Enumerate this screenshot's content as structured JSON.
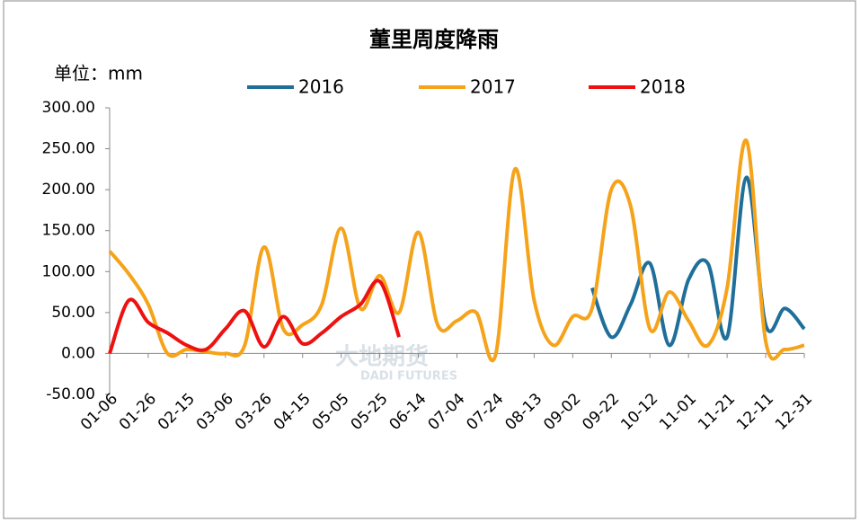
{
  "chart_data": {
    "type": "line",
    "title": "董里周度降雨",
    "unit_label": "单位：mm",
    "watermark": [
      "大地期货",
      "DADI FUTURES"
    ],
    "categories": [
      "01-06",
      null,
      "01-26",
      null,
      "02-15",
      null,
      "03-06",
      null,
      "03-26",
      null,
      "04-15",
      null,
      "05-05",
      null,
      "05-25",
      null,
      "06-14",
      null,
      "07-04",
      null,
      "07-24",
      null,
      "08-13",
      null,
      "09-02",
      null,
      "09-22",
      null,
      "10-12",
      null,
      "11-01",
      null,
      "11-21",
      null,
      "12-11",
      null,
      "12-31"
    ],
    "series": [
      {
        "name": "2016",
        "color": "#1f6f9a",
        "values": [
          null,
          null,
          null,
          null,
          null,
          null,
          null,
          null,
          null,
          null,
          null,
          null,
          null,
          null,
          null,
          null,
          null,
          null,
          null,
          null,
          null,
          null,
          null,
          null,
          null,
          80,
          20,
          60,
          110,
          10,
          90,
          110,
          20,
          215,
          35,
          55,
          30
        ]
      },
      {
        "name": "2017",
        "color": "#f5a31a",
        "values": [
          125,
          97,
          60,
          0,
          5,
          2,
          0,
          10,
          130,
          30,
          35,
          60,
          153,
          55,
          95,
          50,
          148,
          35,
          40,
          50,
          -2,
          225,
          65,
          10,
          45,
          55,
          200,
          180,
          30,
          75,
          40,
          10,
          80,
          260,
          15,
          5,
          10
        ]
      },
      {
        "name": "2018",
        "color": "#ee1111",
        "values": [
          0,
          65,
          38,
          25,
          10,
          5,
          30,
          52,
          8,
          45,
          12,
          25,
          45,
          60,
          88,
          20,
          null,
          null,
          null,
          null,
          null,
          null,
          null,
          null,
          null,
          null,
          null,
          null,
          null,
          null,
          null,
          null,
          null,
          null,
          null,
          null,
          null
        ]
      }
    ],
    "ylim": [
      -50,
      300
    ],
    "yticks": [
      {
        "value": -50,
        "label": "-50.00"
      },
      {
        "value": 0,
        "label": "0.00"
      },
      {
        "value": 50,
        "label": "50.00"
      },
      {
        "value": 100,
        "label": "100.00"
      },
      {
        "value": 150,
        "label": "150.00"
      },
      {
        "value": 200,
        "label": "200.00"
      },
      {
        "value": 250,
        "label": "250.00"
      },
      {
        "value": 300,
        "label": "300.00"
      }
    ],
    "legend": "top"
  }
}
